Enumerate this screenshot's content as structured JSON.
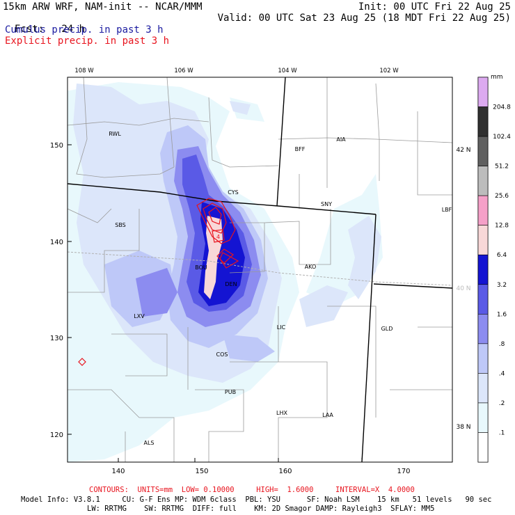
{
  "header": {
    "model_line": "15km ARW WRF, NAM-init -- NCAR/MMM",
    "init_line": "Init: 00 UTC Fri 22 Aug 25",
    "fcst_label": "Fcst:",
    "fcst_value": "24 h",
    "valid_line": "Valid: 00 UTC Sat 23 Aug 25 (18 MDT Fri 22 Aug 25)",
    "cumulus_label": "Cumulus precip. in past 3 h",
    "explicit_label": "Explicit precip. in past 3 h"
  },
  "colors": {
    "cumulus_label": "#1a1aa0",
    "explicit_label": "#e8141e",
    "contours": "#e8141e",
    "state_borders": "#000000",
    "county_lines": "#9a9a9a"
  },
  "map": {
    "longitude_labels": [
      "108 W",
      "106 W",
      "104 W",
      "102 W"
    ],
    "latitude_labels": [
      "42 N",
      "40 N",
      "38 N"
    ],
    "grid_x_ticks": [
      "140",
      "150",
      "160",
      "170"
    ],
    "grid_y_ticks": [
      "120",
      "130",
      "140",
      "150"
    ],
    "stations": [
      "RWL",
      "BFF",
      "AIA",
      "CYS",
      "SNY",
      "LBF",
      "SBS",
      "AKO",
      "BOU",
      "DEN",
      "LXV",
      "LIC",
      "GLD",
      "COS",
      "PUB",
      "LHX",
      "LAA",
      "ALS"
    ],
    "contour_label": "4"
  },
  "legend": {
    "unit": "mm",
    "levels": [
      "204.8",
      "102.4",
      "51.2",
      "25.6",
      "12.8",
      "6.4",
      "3.2",
      "1.6",
      ".8",
      ".4",
      ".2",
      ".1"
    ],
    "colors": [
      "#dcaaf0",
      "#303030",
      "#606060",
      "#bcbcbc",
      "#f5a0c8",
      "#f8d8d8",
      "#1414d2",
      "#5a5ae6",
      "#8c8cf0",
      "#bec8f8",
      "#dce6fa",
      "#e8f8fc",
      "#ffffff"
    ]
  },
  "footer": {
    "contours_line": "CONTOURS:  UNITS=mm  LOW= 0.10000     HIGH=  1.6000     INTERVAL=X  4.0000",
    "model_info_line": "Model Info: V3.8.1     CU: G-F Ens MP: WDM 6class  PBL: YSU      SF: Noah LSM    15 km   51 levels   90 sec",
    "physics_line": "LW: RRTMG    SW: RRTMG  DIFF: full    KM: 2D Smagor DAMP: Rayleigh3  SFLAY: MM5"
  }
}
